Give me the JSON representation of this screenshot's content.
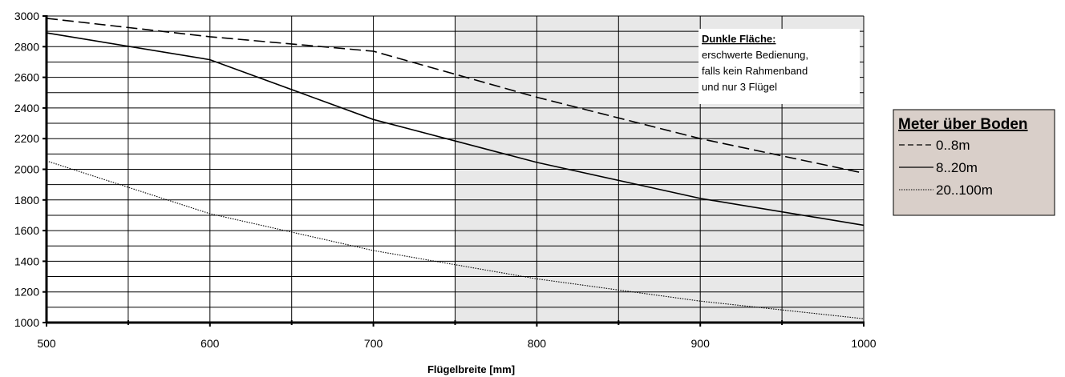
{
  "chart_data": {
    "type": "line",
    "title": "",
    "xlabel": "Flügelbreite [mm]",
    "ylabel": "",
    "xlim": [
      500,
      1000
    ],
    "ylim": [
      1000,
      3000
    ],
    "x_ticks": [
      500,
      600,
      700,
      800,
      900,
      1000
    ],
    "y_ticks": [
      1000,
      1200,
      1400,
      1600,
      1800,
      2000,
      2200,
      2400,
      2600,
      2800,
      3000
    ],
    "x_gridlines": [
      550,
      600,
      650,
      700,
      750,
      800,
      850,
      900,
      950
    ],
    "y_gridlines": [
      1100,
      1200,
      1300,
      1400,
      1500,
      1600,
      1700,
      1800,
      1900,
      2000,
      2100,
      2200,
      2300,
      2400,
      2500,
      2600,
      2700,
      2800,
      2900
    ],
    "grid": true,
    "shaded_region": {
      "x": [
        750,
        1000
      ],
      "color": "#e8e8e8"
    },
    "series": [
      {
        "name": "0..8m",
        "style": "dashed",
        "color": "#000000",
        "x": [
          500,
          600,
          700,
          800,
          900,
          1000
        ],
        "values": [
          2985,
          2865,
          2770,
          2470,
          2200,
          1975
        ]
      },
      {
        "name": "8..20m",
        "style": "solid",
        "color": "#000000",
        "x": [
          500,
          600,
          700,
          800,
          900,
          1000
        ],
        "values": [
          2890,
          2715,
          2325,
          2045,
          1810,
          1635
        ]
      },
      {
        "name": "20..100m",
        "style": "dotted",
        "color": "#000000",
        "x": [
          500,
          600,
          700,
          800,
          900,
          1000
        ],
        "values": [
          2055,
          1710,
          1470,
          1285,
          1140,
          1025
        ]
      }
    ],
    "annotation": {
      "title": "Dunkle Fläche:",
      "lines": [
        "erschwerte Bedienung,",
        "falls kein Rahmenband",
        "und nur 3 Flügel"
      ]
    },
    "legend": {
      "title": "Meter über Boden",
      "placement": "right",
      "background": "#d9cfc9"
    }
  }
}
